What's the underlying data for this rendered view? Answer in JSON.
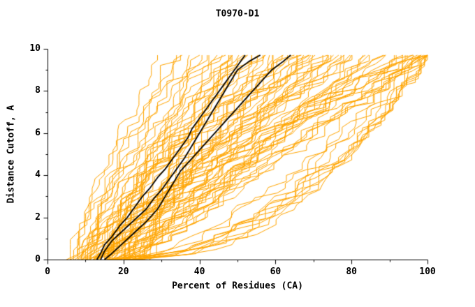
{
  "title": "T0970-D1",
  "chart_data": {
    "type": "line",
    "title": "T0970-D1",
    "xlabel": "Percent of Residues (CA)",
    "ylabel": "Distance Cutoff, A",
    "xlim": [
      0,
      100
    ],
    "ylim": [
      0,
      10
    ],
    "x_ticks": [
      0,
      20,
      40,
      60,
      80,
      100
    ],
    "y_ticks": [
      0,
      2,
      4,
      6,
      8,
      10
    ],
    "x_minor_step": 10,
    "y_minor_step": 1,
    "grid": false,
    "legend_position": "none",
    "y_max_data": 9.7,
    "colors": {
      "model_lines": "#ffa500",
      "highlight_lines": "#000000",
      "axis": "#000000",
      "background": "#ffffff"
    },
    "black_series": [
      {
        "points": [
          [
            13,
            0
          ],
          [
            14,
            0.3
          ],
          [
            15,
            0.7
          ],
          [
            17,
            1.1
          ],
          [
            19,
            1.6
          ],
          [
            21,
            2.0
          ],
          [
            23,
            2.5
          ],
          [
            25,
            3.0
          ],
          [
            27,
            3.4
          ],
          [
            29,
            3.9
          ],
          [
            31,
            4.3
          ],
          [
            33,
            4.8
          ],
          [
            35,
            5.3
          ],
          [
            37,
            5.8
          ],
          [
            38,
            6.2
          ],
          [
            40,
            6.7
          ],
          [
            42,
            7.2
          ],
          [
            44,
            7.7
          ],
          [
            46,
            8.2
          ],
          [
            48,
            8.7
          ],
          [
            50,
            9.2
          ],
          [
            52,
            9.7
          ]
        ]
      },
      {
        "points": [
          [
            14,
            0
          ],
          [
            15,
            0.4
          ],
          [
            17,
            0.9
          ],
          [
            20,
            1.4
          ],
          [
            23,
            1.9
          ],
          [
            26,
            2.4
          ],
          [
            28,
            2.9
          ],
          [
            30,
            3.3
          ],
          [
            32,
            3.8
          ],
          [
            34,
            4.3
          ],
          [
            36,
            4.8
          ],
          [
            38,
            5.4
          ],
          [
            40,
            6.0
          ],
          [
            42,
            6.6
          ],
          [
            44,
            7.2
          ],
          [
            46,
            7.8
          ],
          [
            48,
            8.4
          ],
          [
            50,
            9.0
          ],
          [
            53,
            9.4
          ],
          [
            56,
            9.7
          ]
        ]
      },
      {
        "points": [
          [
            15,
            0
          ],
          [
            17,
            0.3
          ],
          [
            20,
            0.8
          ],
          [
            23,
            1.3
          ],
          [
            26,
            1.8
          ],
          [
            29,
            2.4
          ],
          [
            31,
            3.0
          ],
          [
            33,
            3.6
          ],
          [
            35,
            4.2
          ],
          [
            38,
            4.8
          ],
          [
            41,
            5.4
          ],
          [
            44,
            6.0
          ],
          [
            47,
            6.6
          ],
          [
            50,
            7.2
          ],
          [
            53,
            7.8
          ],
          [
            56,
            8.4
          ],
          [
            59,
            9.0
          ],
          [
            62,
            9.4
          ],
          [
            64,
            9.7
          ]
        ]
      }
    ],
    "orange_curves": [
      [
        6,
        30,
        1.2
      ],
      [
        7,
        34,
        1.0
      ],
      [
        8,
        38,
        1.4
      ],
      [
        9,
        42,
        0.9
      ],
      [
        10,
        45,
        1.1
      ],
      [
        8,
        48,
        1.3
      ],
      [
        12,
        50,
        0.8
      ],
      [
        11,
        52,
        1.5
      ],
      [
        9,
        55,
        1.0
      ],
      [
        13,
        58,
        1.2
      ],
      [
        14,
        60,
        0.9
      ],
      [
        10,
        62,
        1.4
      ],
      [
        15,
        65,
        1.1
      ],
      [
        12,
        68,
        0.85
      ],
      [
        16,
        70,
        1.3
      ],
      [
        11,
        72,
        1.0
      ],
      [
        17,
        75,
        1.2
      ],
      [
        13,
        78,
        0.9
      ],
      [
        18,
        80,
        1.1
      ],
      [
        14,
        82,
        1.35
      ],
      [
        19,
        85,
        0.95
      ],
      [
        15,
        88,
        1.25
      ],
      [
        20,
        90,
        1.05
      ],
      [
        16,
        92,
        0.8
      ],
      [
        21,
        95,
        1.2
      ],
      [
        17,
        98,
        0.9
      ],
      [
        22,
        100,
        1.1
      ],
      [
        18,
        100,
        1.4
      ],
      [
        23,
        100,
        0.75
      ],
      [
        19,
        97,
        1.15
      ],
      [
        6,
        36,
        1.5
      ],
      [
        7,
        44,
        1.25
      ],
      [
        8,
        52,
        1.05
      ],
      [
        9,
        60,
        0.95
      ],
      [
        10,
        68,
        1.35
      ],
      [
        11,
        76,
        1.15
      ],
      [
        12,
        84,
        0.9
      ],
      [
        13,
        92,
        1.3
      ],
      [
        14,
        100,
        1.0
      ],
      [
        15,
        40,
        1.2
      ],
      [
        16,
        46,
        0.85
      ],
      [
        17,
        54,
        1.45
      ],
      [
        18,
        62,
        1.05
      ],
      [
        19,
        70,
        0.8
      ],
      [
        20,
        78,
        1.25
      ],
      [
        21,
        86,
        1.0
      ],
      [
        22,
        94,
        1.4
      ],
      [
        23,
        48,
        0.9
      ],
      [
        24,
        56,
        1.2
      ],
      [
        25,
        64,
        1.0
      ],
      [
        5,
        33,
        1.1
      ],
      [
        6,
        41,
        1.3
      ],
      [
        7,
        49,
        0.95
      ],
      [
        8,
        57,
        1.15
      ],
      [
        9,
        65,
        1.45
      ],
      [
        10,
        73,
        0.85
      ],
      [
        11,
        81,
        1.2
      ],
      [
        12,
        89,
        1.0
      ],
      [
        13,
        97,
        1.35
      ],
      [
        14,
        37,
        0.9
      ],
      [
        15,
        45,
        1.15
      ],
      [
        16,
        53,
        1.3
      ],
      [
        17,
        61,
        0.95
      ],
      [
        18,
        69,
        1.1
      ],
      [
        19,
        77,
        1.4
      ],
      [
        20,
        85,
        0.9
      ],
      [
        21,
        93,
        1.2
      ],
      [
        22,
        100,
        0.95
      ],
      [
        23,
        100,
        1.3
      ],
      [
        24,
        99,
        1.05
      ],
      [
        15,
        95,
        0.45
      ],
      [
        18,
        100,
        0.5
      ],
      [
        20,
        98,
        0.4
      ],
      [
        22,
        100,
        0.55
      ],
      [
        16,
        90,
        0.5
      ],
      [
        19,
        96,
        0.42
      ],
      [
        24,
        100,
        0.48
      ],
      [
        21,
        99,
        0.52
      ],
      [
        17,
        94,
        0.47
      ],
      [
        23,
        100,
        0.5
      ],
      [
        10,
        55,
        1.6
      ],
      [
        12,
        59,
        0.7
      ],
      [
        14,
        63,
        1.5
      ],
      [
        16,
        67,
        0.75
      ],
      [
        18,
        71,
        1.5
      ],
      [
        20,
        75,
        0.7
      ],
      [
        9,
        50,
        1.8
      ],
      [
        11,
        47,
        0.65
      ],
      [
        13,
        74,
        1.7
      ],
      [
        15,
        79,
        0.6
      ]
    ]
  }
}
